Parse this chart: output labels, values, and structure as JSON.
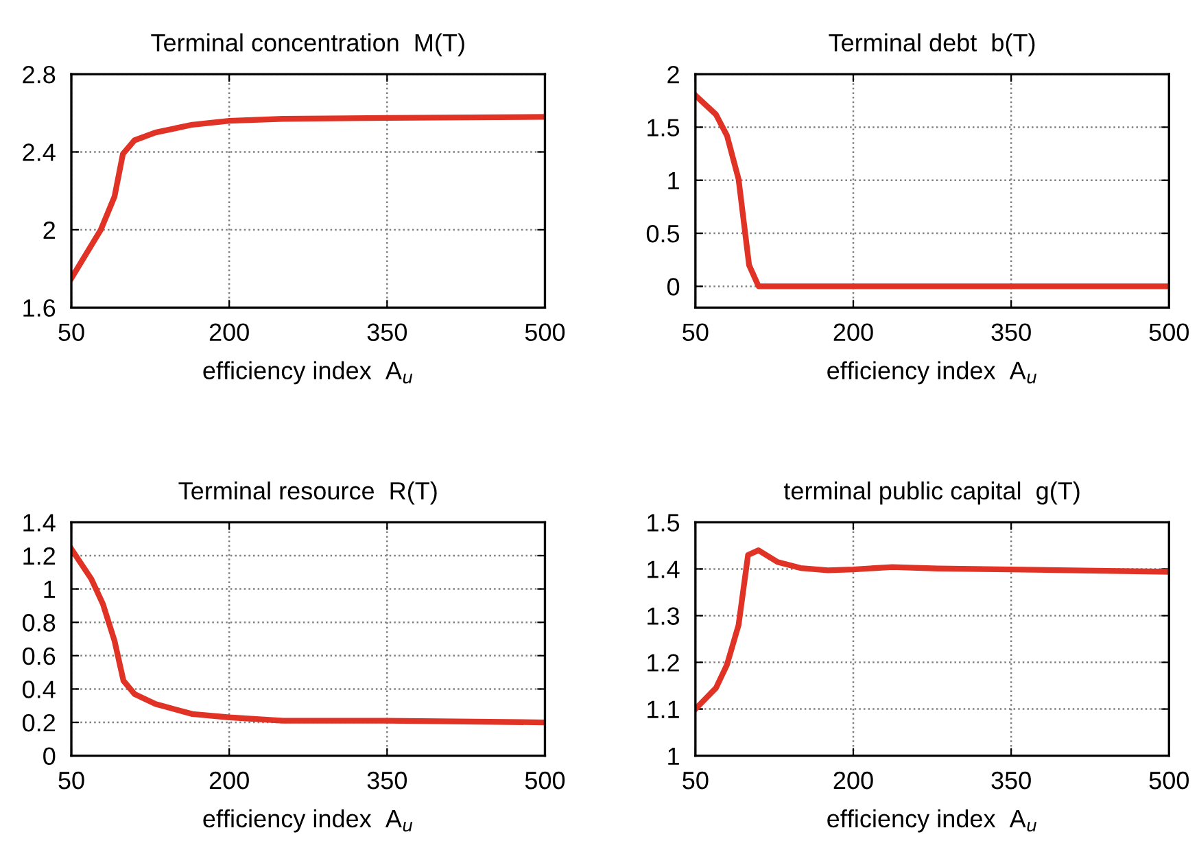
{
  "chart_data": [
    {
      "type": "line",
      "title": "Terminal concentration  M(T)",
      "xlabel": "efficiency index  A$_{u}$",
      "xlim": [
        50,
        500
      ],
      "xticks": [
        50,
        200,
        350,
        500
      ],
      "ylim": [
        1.6,
        2.8
      ],
      "yticks": [
        1.6,
        2,
        2.4,
        2.8
      ],
      "grid": true,
      "marker": "none",
      "line_style": "solid",
      "series": [
        {
          "color": "#e03325",
          "x": [
            50,
            78,
            91,
            99,
            110,
            130,
            165,
            200,
            251,
            350,
            500
          ],
          "values": [
            1.75,
            2.0,
            2.17,
            2.39,
            2.46,
            2.5,
            2.54,
            2.56,
            2.57,
            2.575,
            2.58
          ]
        }
      ]
    },
    {
      "type": "line",
      "title": "Terminal debt  b(T)",
      "xlabel": "efficiency index  A$_{u}$",
      "xlim": [
        50,
        500
      ],
      "xticks": [
        50,
        200,
        350,
        500
      ],
      "ylim": [
        -0.2,
        2
      ],
      "yticks": [
        0,
        0.5,
        1,
        1.5,
        2
      ],
      "grid": true,
      "marker": "none",
      "line_style": "solid",
      "series": [
        {
          "color": "#e03325",
          "x": [
            50,
            69.5,
            80,
            91,
            101,
            110,
            200,
            350,
            500
          ],
          "values": [
            1.8,
            1.62,
            1.42,
            1.01,
            0.2,
            0,
            0,
            0,
            0
          ]
        }
      ]
    },
    {
      "type": "line",
      "title": "Terminal resource  R(T)",
      "xlabel": "efficiency index  A$_{u}$",
      "xlim": [
        50,
        500
      ],
      "xticks": [
        50,
        200,
        350,
        500
      ],
      "ylim": [
        0,
        1.4
      ],
      "yticks": [
        0,
        0.2,
        0.4,
        0.6,
        0.8,
        1,
        1.2,
        1.4
      ],
      "grid": true,
      "marker": "none",
      "line_style": "solid",
      "series": [
        {
          "color": "#e03325",
          "x": [
            50,
            69,
            80,
            91,
            99.5,
            110,
            130,
            165,
            200,
            251,
            350,
            500
          ],
          "values": [
            1.24,
            1.06,
            0.91,
            0.69,
            0.45,
            0.37,
            0.31,
            0.25,
            0.23,
            0.21,
            0.21,
            0.2
          ]
        }
      ]
    },
    {
      "type": "line",
      "title": "terminal public capital  g(T)",
      "xlabel": "efficiency index  A$_{u}$",
      "xlim": [
        50,
        500
      ],
      "xticks": [
        50,
        200,
        350,
        500
      ],
      "ylim": [
        1,
        1.5
      ],
      "yticks": [
        1,
        1.1,
        1.2,
        1.3,
        1.4,
        1.5
      ],
      "grid": true,
      "marker": "none",
      "line_style": "solid",
      "series": [
        {
          "color": "#e03325",
          "x": [
            50,
            69.5,
            80,
            91,
            100,
            110,
            128,
            150,
            176,
            200,
            237,
            280,
            350,
            500
          ],
          "values": [
            1.1,
            1.145,
            1.195,
            1.28,
            1.43,
            1.44,
            1.415,
            1.402,
            1.397,
            1.399,
            1.404,
            1.401,
            1.399,
            1.394
          ]
        }
      ]
    }
  ]
}
